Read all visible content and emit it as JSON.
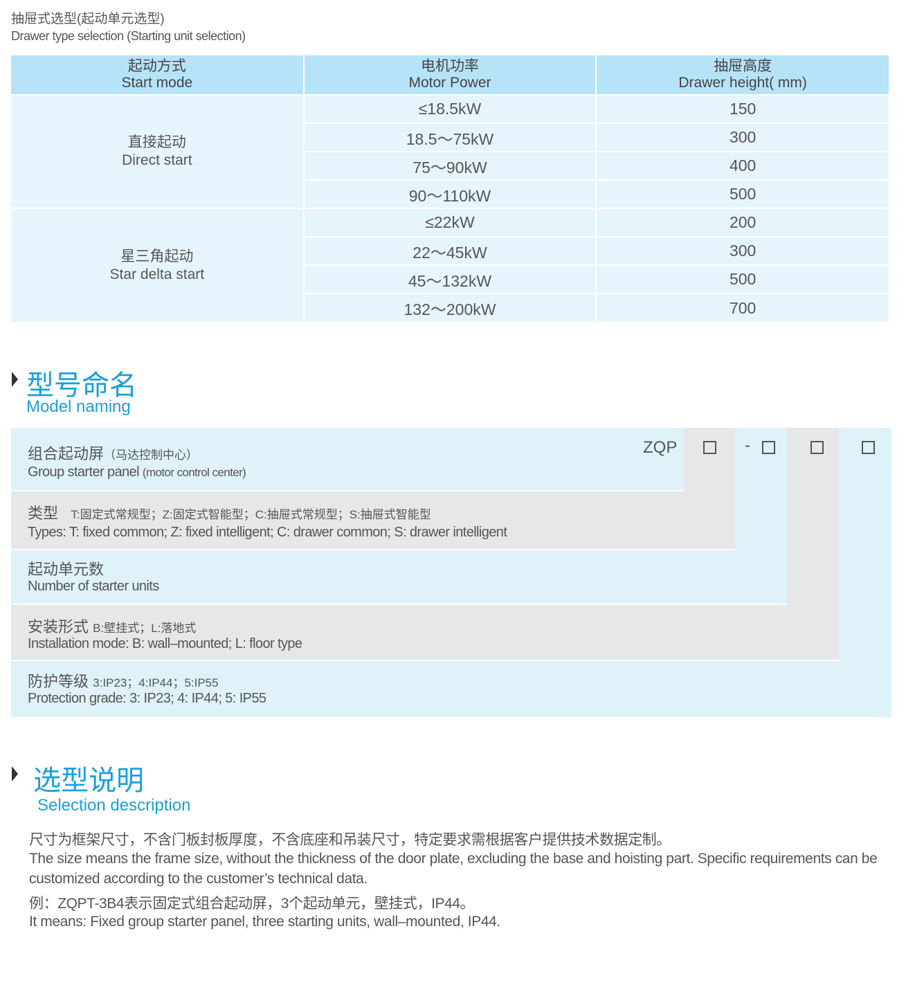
{
  "header": {
    "title_cn": "抽屉式选型(起动单元选型)",
    "title_en": "Drawer type selection (Starting unit selection)"
  },
  "table": {
    "columns": [
      {
        "cn": "起动方式",
        "en": "Start mode"
      },
      {
        "cn": "电机功率",
        "en": "Motor Power"
      },
      {
        "cn": "抽屉高度",
        "en": "Drawer height( mm)"
      }
    ],
    "groups": [
      {
        "cn": "直接起动",
        "en": "Direct start",
        "rows": [
          {
            "power": "≤18.5kW",
            "height": "150"
          },
          {
            "power": "18.5～75kW",
            "height": "300"
          },
          {
            "power": "75～90kW",
            "height": "400"
          },
          {
            "power": "90～110kW",
            "height": "500"
          }
        ]
      },
      {
        "cn": "星三角起动",
        "en": "Star delta start",
        "rows": [
          {
            "power": "≤22kW",
            "height": "200"
          },
          {
            "power": "22～45kW",
            "height": "300"
          },
          {
            "power": "45～132kW",
            "height": "500"
          },
          {
            "power": "132～200kW",
            "height": "700"
          }
        ]
      }
    ]
  },
  "model_naming": {
    "title_cn": "型号命名",
    "title_en": "Model naming",
    "prefix": "ZQP",
    "dash": "-",
    "rows": [
      {
        "cn": "组合起动屏",
        "cn_note": "（马达控制中心）",
        "en": "Group starter panel",
        "en_note": "(motor control center)"
      },
      {
        "cn": "类型",
        "cn_note": "T:固定式常规型；Z:固定式智能型；C:抽屉式常规型；S:抽屉式智能型",
        "en": "Types: T: fixed common; Z: fixed intelligent; C: drawer common; S: drawer intelligent"
      },
      {
        "cn": "起动单元数",
        "en": "Number  of  starter units"
      },
      {
        "cn": "安装形式",
        "cn_note": "B:壁挂式；L:落地式",
        "en": "Installation mode: B: wall–mounted; L: floor type"
      },
      {
        "cn": "防护等级",
        "cn_note": "3:IP23；4:IP44；5:IP55",
        "en": "Protection grade:  3: IP23; 4: IP44; 5: IP55"
      }
    ]
  },
  "selection": {
    "title_cn": "选型说明",
    "title_en": "Selection description",
    "lines": [
      "尺寸为框架尺寸，不含门板封板厚度，不含底座和吊装尺寸，特定要求需根据客户提供技术数据定制。",
      "The size means the frame size, without the thickness of the door plate, excluding the base and hoisting part. Specific requirements can be",
      "customized according to the customer’s technical data.",
      "例：ZQPT-3B4表示固定式组合起动屏，3个起动单元，壁挂式，IP44。",
      "It means: Fixed group starter panel, three starting units, wall–mounted, IP44."
    ]
  }
}
